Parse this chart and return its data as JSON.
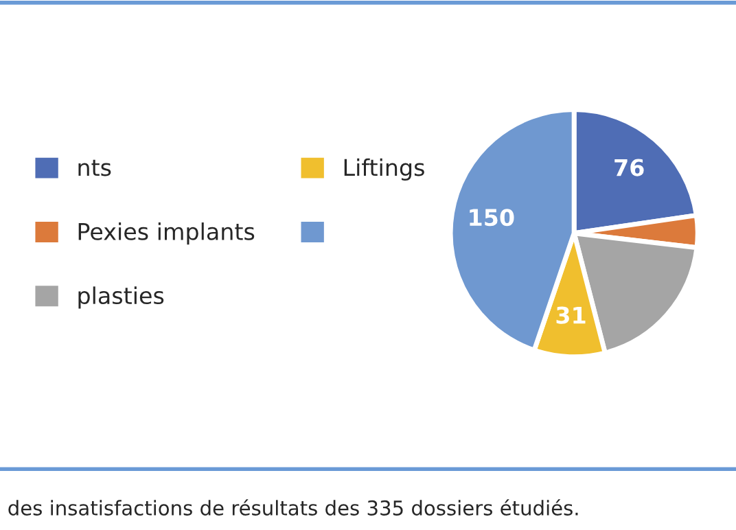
{
  "chart_data": {
    "type": "pie",
    "categories": [
      "nts",
      "Pexies implants",
      "plasties",
      "Liftings",
      null
    ],
    "values": [
      76,
      14,
      64,
      31,
      150
    ],
    "colors": [
      "#4f6db5",
      "#dc7a3b",
      "#a5a5a5",
      "#f0bf2e",
      "#6f98d0"
    ],
    "value_labels": [
      "76",
      null,
      null,
      "31",
      "150"
    ],
    "legend": "left",
    "annotations": [
      "des insatisfactions de résultats des 335 dossiers étudiés."
    ]
  }
}
